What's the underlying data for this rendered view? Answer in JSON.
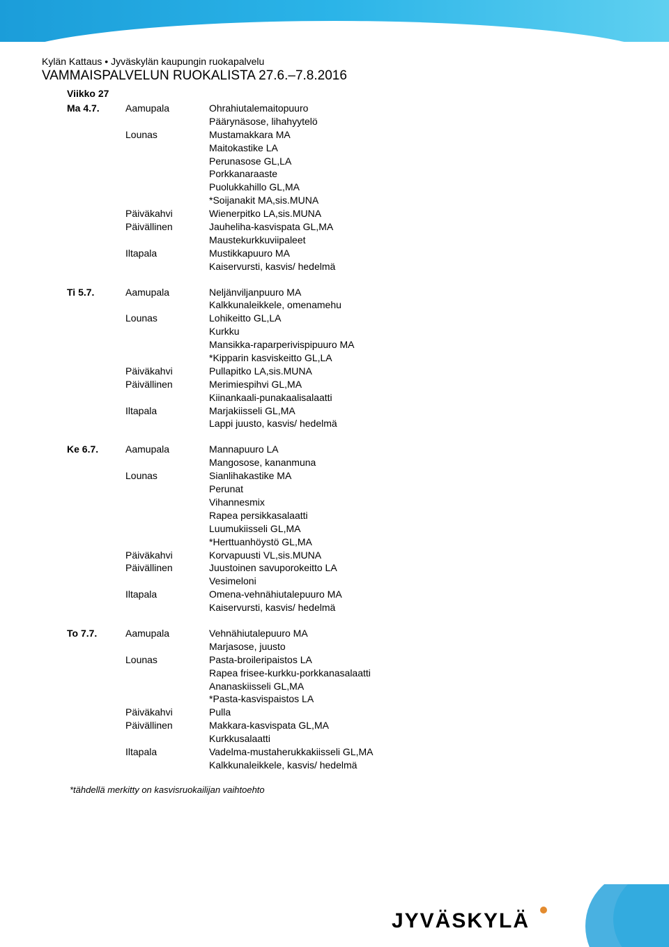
{
  "header": {
    "org": "Kylän Kattaus • Jyväskylän kaupungin ruokapalvelu",
    "title": "VAMMAISPALVELUN RUOKALISTA 27.6.–7.8.2016",
    "week": "Viikko 27"
  },
  "days": [
    {
      "day": "Ma 4.7.",
      "meals": [
        {
          "label": "Aamupala",
          "items": [
            "Ohrahiutalemaitopuuro",
            "Päärynäsose, lihahyytelö"
          ]
        },
        {
          "label": "Lounas",
          "items": [
            "Mustamakkara MA",
            "Maitokastike LA",
            "Perunasose GL,LA",
            "Porkkanaraaste",
            "Puolukkahillo GL,MA",
            "*Soijanakit MA,sis.MUNA"
          ]
        },
        {
          "label": "Päiväkahvi",
          "items": [
            "Wienerpitko LA,sis.MUNA"
          ]
        },
        {
          "label": "Päivällinen",
          "items": [
            "Jauheliha-kasvispata GL,MA",
            "Maustekurkkuviipaleet"
          ]
        },
        {
          "label": "Iltapala",
          "items": [
            "Mustikkapuuro MA",
            "Kaiservursti, kasvis/ hedelmä"
          ]
        }
      ]
    },
    {
      "day": "Ti 5.7.",
      "meals": [
        {
          "label": "Aamupala",
          "items": [
            "Neljänviljanpuuro MA",
            "Kalkkunaleikkele, omenamehu"
          ]
        },
        {
          "label": "Lounas",
          "items": [
            "Lohikeitto GL,LA",
            "Kurkku",
            "Mansikka-raparperivispipuuro MA",
            "*Kipparin kasviskeitto GL,LA"
          ]
        },
        {
          "label": "Päiväkahvi",
          "items": [
            "Pullapitko LA,sis.MUNA"
          ]
        },
        {
          "label": "Päivällinen",
          "items": [
            "Merimiespihvi GL,MA",
            "Kiinankaali-punakaalisalaatti"
          ]
        },
        {
          "label": "Iltapala",
          "items": [
            "Marjakiisseli GL,MA",
            "Lappi juusto, kasvis/ hedelmä"
          ]
        }
      ]
    },
    {
      "day": "Ke 6.7.",
      "meals": [
        {
          "label": "Aamupala",
          "items": [
            "Mannapuuro LA",
            "Mangosose, kananmuna"
          ]
        },
        {
          "label": "Lounas",
          "items": [
            "Sianlihakastike MA",
            "Perunat",
            "Vihannesmix",
            "Rapea persikkasalaatti",
            "Luumukiisseli GL,MA",
            "*Herttuanhöystö GL,MA"
          ]
        },
        {
          "label": "Päiväkahvi",
          "items": [
            "Korvapuusti VL,sis.MUNA"
          ]
        },
        {
          "label": "Päivällinen",
          "items": [
            "Juustoinen savuporokeitto LA",
            "Vesimeloni"
          ]
        },
        {
          "label": "Iltapala",
          "items": [
            "Omena-vehnähiutalepuuro MA",
            "Kaiservursti, kasvis/ hedelmä"
          ]
        }
      ]
    },
    {
      "day": "To 7.7.",
      "meals": [
        {
          "label": "Aamupala",
          "items": [
            "Vehnähiutalepuuro MA",
            "Marjasose, juusto"
          ]
        },
        {
          "label": "Lounas",
          "items": [
            "Pasta-broileripaistos LA",
            "Rapea frisee-kurkku-porkkanasalaatti",
            "Ananaskiisseli GL,MA",
            "*Pasta-kasvispaistos LA"
          ]
        },
        {
          "label": "Päiväkahvi",
          "items": [
            "Pulla"
          ]
        },
        {
          "label": "Päivällinen",
          "items": [
            "Makkara-kasvispata GL,MA",
            "Kurkkusalaatti"
          ]
        },
        {
          "label": "Iltapala",
          "items": [
            "Vadelma-mustaherukkakiisseli GL,MA",
            "Kalkkunaleikkele, kasvis/ hedelmä"
          ]
        }
      ]
    }
  ],
  "footnote": "*tähdellä merkitty on kasvisruokailijan vaihtoehto",
  "footer_logo": "JYVÄSKYLÄ",
  "colors": {
    "wave1": "#1b9dd9",
    "wave2": "#5fd0f0",
    "dot": "#e38b2f",
    "text": "#000000",
    "bg": "#ffffff"
  },
  "typography": {
    "body_fontsize": 14,
    "title_fontsize": 19,
    "logo_fontsize": 30
  }
}
